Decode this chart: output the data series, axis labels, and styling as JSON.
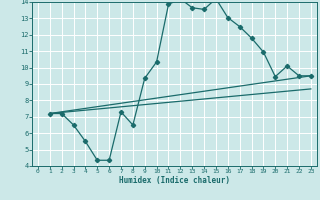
{
  "xlabel": "Humidex (Indice chaleur)",
  "bg_color": "#cce8e8",
  "grid_color": "#ffffff",
  "line_color": "#1a6b6b",
  "xlim": [
    -0.5,
    23.5
  ],
  "ylim": [
    4,
    14
  ],
  "xticks": [
    0,
    1,
    2,
    3,
    4,
    5,
    6,
    7,
    8,
    9,
    10,
    11,
    12,
    13,
    14,
    15,
    16,
    17,
    18,
    19,
    20,
    21,
    22,
    23
  ],
  "yticks": [
    4,
    5,
    6,
    7,
    8,
    9,
    10,
    11,
    12,
    13,
    14
  ],
  "curve1_x": [
    1,
    2,
    3,
    4,
    5,
    6,
    7,
    8,
    9,
    10,
    11,
    12,
    13,
    14,
    15,
    16,
    17,
    18,
    19,
    20,
    21,
    22,
    23
  ],
  "curve1_y": [
    7.2,
    7.2,
    6.5,
    5.5,
    4.35,
    4.35,
    7.3,
    6.5,
    9.35,
    10.35,
    13.85,
    14.2,
    13.65,
    13.55,
    14.2,
    13.05,
    12.5,
    11.8,
    10.95,
    9.45,
    10.1,
    9.5,
    9.5
  ],
  "curve2_x": [
    1,
    23
  ],
  "curve2_y": [
    7.2,
    9.5
  ],
  "curve3_x": [
    1,
    23
  ],
  "curve3_y": [
    7.2,
    8.7
  ]
}
